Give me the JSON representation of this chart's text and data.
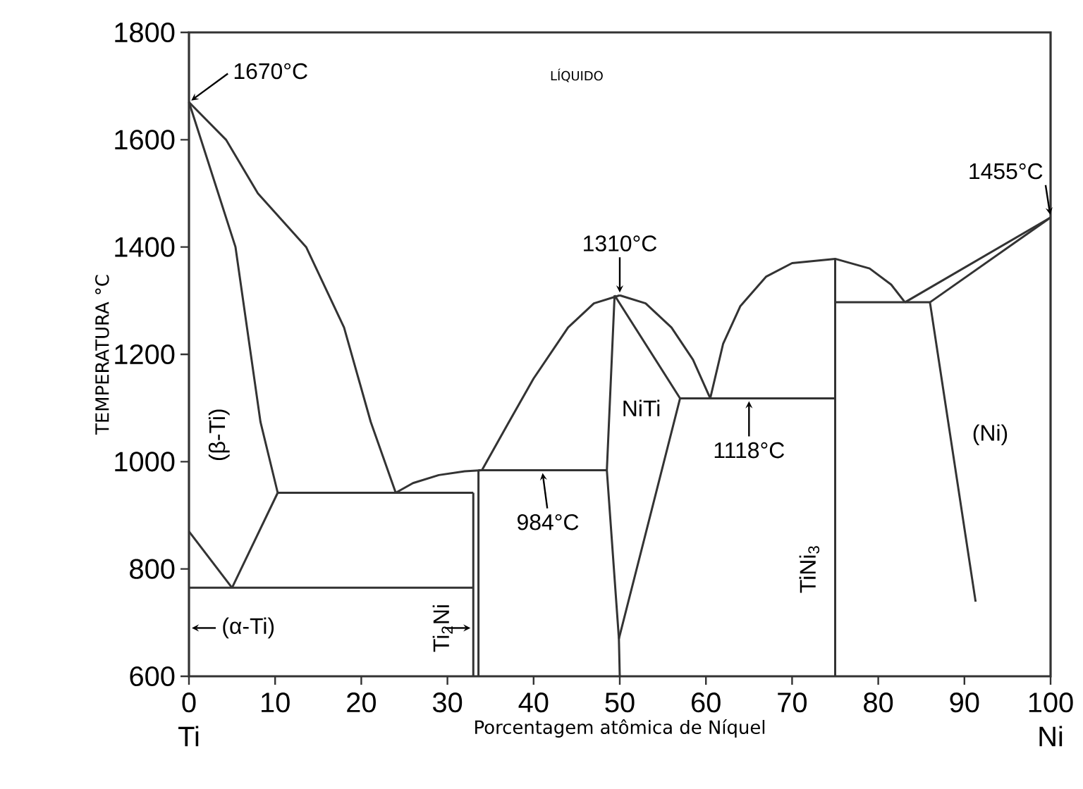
{
  "chart_data": {
    "type": "line",
    "xlabel": "Porcentagem atômica de Níquel",
    "ylabel": "TEMPERATURA °C",
    "xlim": [
      0,
      100
    ],
    "ylim": [
      600,
      1800
    ],
    "xticks": [
      0,
      10,
      20,
      30,
      40,
      50,
      60,
      70,
      80,
      90,
      100
    ],
    "yticks": [
      600,
      800,
      1000,
      1200,
      1400,
      1600,
      1800
    ],
    "grid": false,
    "marker": "none",
    "line_style": "solid",
    "series": [
      {
        "color": "#333333",
        "x": [
          0,
          4.3,
          8,
          13.6,
          18,
          21.1,
          24
        ],
        "values": [
          1670,
          1600,
          1500,
          1400,
          1250,
          1074,
          942
        ]
      },
      {
        "color": "#333333",
        "x": [
          0,
          3,
          5.4,
          8.3,
          10.3
        ],
        "values": [
          1670,
          1520,
          1400,
          1074,
          942
        ]
      },
      {
        "color": "#333333",
        "x": [
          10.3,
          33
        ],
        "values": [
          942,
          942
        ]
      },
      {
        "color": "#333333",
        "x": [
          10.3,
          5
        ],
        "values": [
          942,
          765
        ]
      },
      {
        "color": "#333333",
        "x": [
          0,
          5
        ],
        "values": [
          870,
          765
        ]
      },
      {
        "color": "#333333",
        "x": [
          0,
          33
        ],
        "values": [
          765,
          765
        ]
      },
      {
        "color": "#333333",
        "x": [
          33,
          33
        ],
        "values": [
          600,
          942
        ]
      },
      {
        "color": "#333333",
        "x": [
          33.6,
          33.6
        ],
        "values": [
          600,
          984
        ]
      },
      {
        "color": "#333333",
        "x": [
          24,
          26,
          29,
          32,
          34
        ],
        "values": [
          942,
          960,
          975,
          982,
          984
        ]
      },
      {
        "color": "#333333",
        "x": [
          33.6,
          48.6
        ],
        "values": [
          984,
          984
        ]
      },
      {
        "color": "#333333",
        "x": [
          34,
          37,
          40,
          44,
          47,
          50
        ],
        "values": [
          984,
          1070,
          1155,
          1250,
          1295,
          1310
        ]
      },
      {
        "color": "#333333",
        "x": [
          50,
          53,
          56,
          58.5,
          60.5
        ],
        "values": [
          1310,
          1295,
          1250,
          1190,
          1118
        ]
      },
      {
        "color": "#333333",
        "x": [
          49.4,
          48.5,
          49.9,
          50
        ],
        "values": [
          1310,
          984,
          670,
          600
        ]
      },
      {
        "color": "#333333",
        "x": [
          49.4,
          57,
          49.9
        ],
        "values": [
          1310,
          1118,
          670
        ]
      },
      {
        "color": "#333333",
        "x": [
          57,
          75
        ],
        "values": [
          1118,
          1118
        ]
      },
      {
        "color": "#333333",
        "x": [
          60.5,
          62,
          64,
          67,
          70,
          75,
          79,
          81.5,
          83.1
        ],
        "values": [
          1118,
          1220,
          1290,
          1345,
          1370,
          1378,
          1360,
          1330,
          1297
        ]
      },
      {
        "color": "#333333",
        "x": [
          75,
          75
        ],
        "values": [
          600,
          1378
        ]
      },
      {
        "color": "#333333",
        "x": [
          75,
          86
        ],
        "values": [
          1297,
          1297
        ]
      },
      {
        "color": "#333333",
        "x": [
          83.1,
          100
        ],
        "values": [
          1297,
          1455
        ]
      },
      {
        "color": "#333333",
        "x": [
          86,
          100
        ],
        "values": [
          1297,
          1455
        ]
      },
      {
        "color": "#333333",
        "x": [
          86,
          91.3
        ],
        "values": [
          1297,
          739
        ]
      }
    ],
    "annotations": [
      {
        "text": "1670°C",
        "x": 0,
        "y": 1670
      },
      "LÍQUIDO",
      {
        "text": "1455°C",
        "x": 100,
        "y": 1455
      },
      {
        "text": "1310°C",
        "x": 50,
        "y": 1310
      },
      {
        "text": "984°C",
        "x": 41,
        "y": 984
      },
      {
        "text": "1118°C",
        "x": 65,
        "y": 1118
      },
      "NiTi",
      "(Ni)",
      "(β-Ti)",
      "(α-Ti)",
      {
        "text": "Ti$_{2}$Ni",
        "x": 33,
        "y": 690
      },
      "TiNi$_{3}$",
      "Ti",
      "Ni"
    ]
  }
}
